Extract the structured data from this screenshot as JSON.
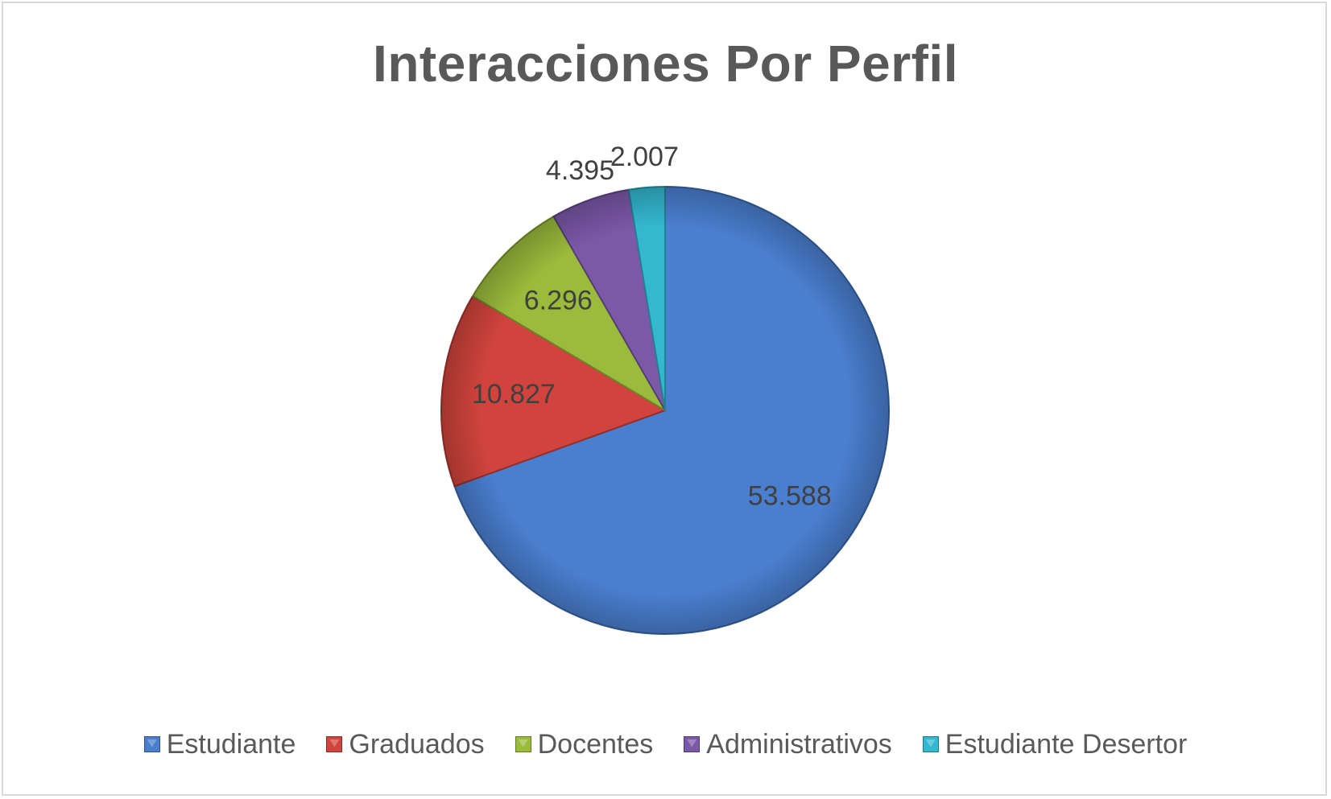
{
  "chart_data": {
    "type": "pie",
    "title": "Interacciones Por Perfil",
    "categories": [
      "Estudiante",
      "Graduados",
      "Docentes",
      "Administrativos",
      "Estudiante Desertor"
    ],
    "values": [
      53588,
      10827,
      6296,
      4395,
      2007
    ],
    "data_labels": [
      "53.588",
      "10.827",
      "6.296",
      "4.395",
      "2.007"
    ],
    "colors": [
      "#4a7fd0",
      "#d0443d",
      "#9bbb3c",
      "#7b58a8",
      "#34b8d0"
    ],
    "start_angle_deg": 0,
    "direction": "clockwise",
    "legend_position": "bottom"
  }
}
